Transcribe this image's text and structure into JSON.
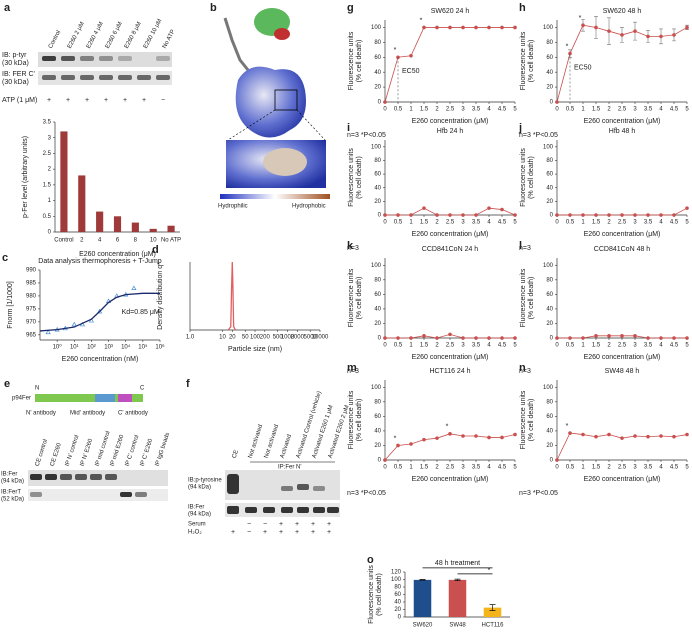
{
  "figure": {
    "a": {
      "label": "a",
      "lanes": [
        "Control",
        "E260 2 μM",
        "E260 4 μM",
        "E260 6 μM",
        "E260 8 μM",
        "E260 10 μM",
        "No ATP"
      ],
      "rows": [
        "IB: p-tyr",
        "(30 kDa)",
        "IB: FER C'",
        "(30 kDa)"
      ],
      "atp_label": "ATP (1 μM)",
      "atp_signs": [
        "+",
        "+",
        "+",
        "+",
        "+",
        "+",
        "−"
      ]
    },
    "b": {
      "label": "b",
      "left": "Hydrophilic",
      "right": "Hydrophobic"
    },
    "e": {
      "label": "e",
      "protein": "p94Fer",
      "n_term": "N",
      "c_term": "C",
      "antibodies": [
        "N' antibody",
        "Mid' antibody",
        "C' antibody"
      ],
      "lanes": [
        "CE control",
        "CE E260",
        "IP N' control",
        "IP N' E260",
        "IP mid control",
        "IP mid E260",
        "IP C' control",
        "IP C' E260",
        "IP IgG beads"
      ],
      "rows": [
        "IB:Fer",
        "(94 kDa)",
        "IB:FerT",
        "(52 kDa)"
      ]
    },
    "f": {
      "label": "f",
      "lanes": [
        "CE",
        "Not activated",
        "Not activated",
        "Activated",
        "Activated Control (vehicle)",
        "Activated E260 1 μM",
        "Activated E260 2 μM"
      ],
      "ip": "IP:Fer N'",
      "rows": [
        "IB:p-tyrosine",
        "(94 kDa)",
        "IB:Fer",
        "(94 kDa)"
      ],
      "serum": "Serum",
      "serum_signs": [
        "",
        "−",
        "−",
        "+",
        "+",
        "+",
        "+"
      ],
      "h2o2": "H₂O₂",
      "h2o2_signs": [
        "+",
        "−",
        "+",
        "+",
        "+",
        "+",
        "+"
      ]
    }
  },
  "chart_data": [
    {
      "type": "bar",
      "categories": [
        "Control",
        "2",
        "4",
        "6",
        "8",
        "10",
        "No ATP"
      ],
      "values": [
        3.2,
        1.8,
        0.65,
        0.5,
        0.3,
        0.1,
        0.2
      ],
      "color": "#9e3a3a",
      "ylim": [
        0,
        3.5
      ],
      "yticks": [
        0,
        0.5,
        1,
        1.5,
        2,
        2.5,
        3,
        3.5
      ],
      "ylabel": [
        "p-Fer level (arbitrary units)"
      ],
      "xlabel": "E260 concentration (μM)"
    },
    {
      "panel": "c",
      "type": "line",
      "title": "Data analysis thermophoresis + T-Jump",
      "xlog": true,
      "xlim": [
        0.1,
        1000000
      ],
      "xticks": [
        {
          "value": 1,
          "label": "10⁰"
        },
        {
          "value": 10,
          "label": "10¹"
        },
        {
          "value": 100,
          "label": "10²"
        },
        {
          "value": 1000,
          "label": "10³"
        },
        {
          "value": 10000,
          "label": "10⁴"
        },
        {
          "value": 100000,
          "label": "10⁵"
        },
        {
          "value": 1000000,
          "label": "10⁶"
        }
      ],
      "ylim": [
        963,
        990
      ],
      "yticks": [
        965,
        970,
        975,
        980,
        985,
        990
      ],
      "ylabel": [
        "Fnorm [1/1000]"
      ],
      "xlabel": "E260 concentration (nM)",
      "annotation": "Kd=0.85 μM",
      "series": [
        {
          "mode": "markers",
          "color": "#4a8fd0",
          "x": [
            0.3,
            1,
            3,
            10,
            30,
            100,
            300,
            1000,
            3000,
            10000,
            30000
          ],
          "values": [
            966,
            967,
            967.5,
            969,
            969,
            970.5,
            974,
            978,
            980,
            980.5,
            983
          ]
        },
        {
          "mode": "line",
          "color": "#1a2a6c",
          "x": [
            0.1,
            1,
            10,
            100,
            300,
            1000,
            3000,
            10000,
            100000,
            1000000
          ],
          "values": [
            966.5,
            967,
            968,
            971,
            974,
            977.5,
            979.5,
            980.5,
            981,
            981
          ]
        }
      ]
    },
    {
      "panel": "d",
      "type": "line",
      "xlog": true,
      "xlim": [
        1,
        10000
      ],
      "xticks": [
        {
          "value": 1,
          "label": "1.0"
        },
        10,
        20,
        50,
        100,
        200,
        500,
        1000,
        2000,
        5000,
        10000
      ],
      "ylim": [
        0,
        100
      ],
      "ylabel": [
        "Density distribution q*"
      ],
      "xlabel": "Particle size (nm)",
      "series": [
        {
          "mode": "line",
          "color": "#e06060",
          "x": [
            15,
            18,
            19,
            20,
            21,
            22,
            25
          ],
          "values": [
            0,
            5,
            60,
            100,
            60,
            5,
            0
          ]
        }
      ]
    },
    {
      "panel": "g",
      "type": "line",
      "title": "SW620 24 h",
      "x": [
        0,
        0.5,
        1,
        1.5,
        2,
        2.5,
        3,
        3.5,
        4,
        4.5,
        5
      ],
      "xlim": [
        0,
        5
      ],
      "xticks": [
        0,
        0.5,
        1,
        1.5,
        2,
        2.5,
        3,
        3.5,
        4,
        4.5,
        5
      ],
      "ylim": [
        0,
        110
      ],
      "yticks": [
        0,
        20,
        40,
        60,
        80,
        100
      ],
      "ylabel": [
        "Fluorescence units",
        "(% cell death)"
      ],
      "xlabel": "E260 concentration (μM)",
      "note": "n=3 *P<0.05",
      "annotation": "EC50",
      "significance_label": "*",
      "significant_x": [
        0.5,
        1.5
      ],
      "series": [
        {
          "mode": "both",
          "color": "#c9504f",
          "values": [
            0,
            60,
            62,
            100,
            100,
            100,
            100,
            100,
            100,
            100,
            100
          ]
        }
      ]
    },
    {
      "panel": "h",
      "type": "line",
      "title": "SW620 48 h",
      "x": [
        0,
        0.5,
        1,
        1.5,
        2,
        2.5,
        3,
        3.5,
        4,
        4.5,
        5
      ],
      "xlim": [
        0,
        5
      ],
      "xticks": [
        0,
        0.5,
        1,
        1.5,
        2,
        2.5,
        3,
        3.5,
        4,
        4.5,
        5
      ],
      "ylim": [
        0,
        110
      ],
      "yticks": [
        0,
        20,
        40,
        60,
        80,
        100
      ],
      "ylabel": [
        "Fluorescence units",
        "(% cell death)"
      ],
      "xlabel": "E260 concentration (μM)",
      "note": "n=3 *P<0.05",
      "annotation": "EC50",
      "significance_label": "*",
      "significant_x": [
        0.5,
        1
      ],
      "series": [
        {
          "mode": "both",
          "color": "#c9504f",
          "values": [
            0,
            65,
            103,
            100,
            95,
            90,
            95,
            88,
            88,
            90,
            100
          ],
          "errors": [
            0,
            5,
            8,
            15,
            18,
            10,
            12,
            8,
            10,
            8,
            3
          ]
        }
      ]
    },
    {
      "panel": "i",
      "type": "line",
      "title": "Hfb 24 h",
      "x": [
        0,
        0.5,
        1,
        1.5,
        2,
        2.5,
        3,
        3.5,
        4,
        4.5,
        5
      ],
      "xlim": [
        0,
        5
      ],
      "xticks": [
        0,
        0.5,
        1,
        1.5,
        2,
        2.5,
        3,
        3.5,
        4,
        4.5,
        5
      ],
      "ylim": [
        0,
        110
      ],
      "yticks": [
        0,
        20,
        40,
        60,
        80,
        100
      ],
      "ylabel": [
        "Fluorescence units",
        "(% cell death)"
      ],
      "xlabel": "E260 concentration (μM)",
      "note": "n=3",
      "series": [
        {
          "mode": "both",
          "color": "#c9504f",
          "values": [
            0,
            0,
            0,
            10,
            0,
            0,
            0,
            0,
            10,
            8,
            0
          ]
        }
      ]
    },
    {
      "panel": "j",
      "type": "line",
      "title": "Hfb 48 h",
      "x": [
        0,
        0.5,
        1,
        1.5,
        2,
        2.5,
        3,
        3.5,
        4,
        4.5,
        5
      ],
      "xlim": [
        0,
        5
      ],
      "xticks": [
        0,
        0.5,
        1,
        1.5,
        2,
        2.5,
        3,
        3.5,
        4,
        4.5,
        5
      ],
      "ylim": [
        0,
        110
      ],
      "yticks": [
        0,
        20,
        40,
        60,
        80,
        100
      ],
      "ylabel": [
        "Fluorescence units",
        "(% cell death)"
      ],
      "xlabel": "E260 concentration (μM)",
      "note": "n=3",
      "series": [
        {
          "mode": "both",
          "color": "#c9504f",
          "values": [
            0,
            0,
            0,
            0,
            0,
            0,
            0,
            0,
            0,
            0,
            10
          ]
        }
      ]
    },
    {
      "panel": "k",
      "type": "line",
      "title": "CCD841CoN 24 h",
      "x": [
        0,
        0.5,
        1,
        1.5,
        2,
        2.5,
        3,
        3.5,
        4,
        4.5,
        5
      ],
      "xlim": [
        0,
        5
      ],
      "xticks": [
        0,
        0.5,
        1,
        1.5,
        2,
        2.5,
        3,
        3.5,
        4,
        4.5,
        5
      ],
      "ylim": [
        0,
        110
      ],
      "yticks": [
        0,
        20,
        40,
        60,
        80,
        100
      ],
      "ylabel": [
        "Fluorescence units",
        "(% cell death)"
      ],
      "xlabel": "E260 concentration (μM)",
      "note": "n=3",
      "series": [
        {
          "mode": "both",
          "color": "#c9504f",
          "values": [
            0,
            0,
            0,
            3,
            0,
            5,
            0,
            0,
            0,
            0,
            0
          ]
        }
      ]
    },
    {
      "panel": "l",
      "type": "line",
      "title": "CCD841CoN 48 h",
      "x": [
        0,
        0.5,
        1,
        1.5,
        2,
        2.5,
        3,
        3.5,
        4,
        4.5,
        5
      ],
      "xlim": [
        0,
        5
      ],
      "xticks": [
        0,
        0.5,
        1,
        1.5,
        2,
        2.5,
        3,
        3.5,
        4,
        4.5,
        5
      ],
      "ylim": [
        0,
        110
      ],
      "yticks": [
        0,
        20,
        40,
        60,
        80,
        100
      ],
      "ylabel": [
        "Fluorescence units",
        "(% cell death)"
      ],
      "xlabel": "E260 concentration (μM)",
      "note": "n=3",
      "series": [
        {
          "mode": "both",
          "color": "#c9504f",
          "values": [
            0,
            0,
            0,
            3,
            3,
            3,
            3,
            0,
            0,
            0,
            0
          ]
        }
      ]
    },
    {
      "panel": "m",
      "type": "line",
      "title": "HCT116 24 h",
      "x": [
        0,
        0.5,
        1,
        1.5,
        2,
        2.5,
        3,
        3.5,
        4,
        4.5,
        5
      ],
      "xlim": [
        0,
        5
      ],
      "xticks": [
        0,
        0.5,
        1,
        1.5,
        2,
        2.5,
        3,
        3.5,
        4,
        4.5,
        5
      ],
      "ylim": [
        0,
        110
      ],
      "yticks": [
        0,
        20,
        40,
        60,
        80,
        100
      ],
      "ylabel": [
        "Fluorescence units",
        "(% cell death)"
      ],
      "xlabel": "E260 concentration (μM)",
      "note": "n=3 *P<0.05",
      "significance_label": "*",
      "significant_x": [
        0.5,
        2.5
      ],
      "series": [
        {
          "mode": "both",
          "color": "#c9504f",
          "values": [
            0,
            20,
            22,
            28,
            30,
            36,
            33,
            33,
            31,
            31,
            35
          ]
        }
      ]
    },
    {
      "panel": "n",
      "type": "line",
      "title": "SW48 48 h",
      "x": [
        0,
        0.5,
        1,
        1.5,
        2,
        2.5,
        3,
        3.5,
        4,
        4.5,
        5
      ],
      "xlim": [
        0,
        5
      ],
      "xticks": [
        0,
        0.5,
        1,
        1.5,
        2,
        2.5,
        3,
        3.5,
        4,
        4.5,
        5
      ],
      "ylim": [
        0,
        110
      ],
      "yticks": [
        0,
        20,
        40,
        60,
        80,
        100
      ],
      "ylabel": [
        "Fluorescence units",
        "(% cell death)"
      ],
      "xlabel": "E260 concentration (μM)",
      "note": "n=3 *P<0.05",
      "significance_label": "*",
      "significant_x": [
        0.5
      ],
      "series": [
        {
          "mode": "both",
          "color": "#c9504f",
          "values": [
            0,
            37,
            35,
            32,
            35,
            30,
            33,
            32,
            33,
            32,
            35
          ]
        }
      ]
    },
    {
      "panel": "o",
      "type": "bar",
      "title": "48 h treatment",
      "categories": [
        "SW620",
        "SW48",
        "HCT116"
      ],
      "values": [
        99,
        99,
        25
      ],
      "errors": [
        1,
        2,
        8
      ],
      "colors": [
        "#1f4e8c",
        "#c9504f",
        "#f4b41a"
      ],
      "ylim": [
        0,
        120
      ],
      "yticks": [
        0,
        20,
        40,
        60,
        80,
        100,
        120
      ],
      "ylabel": [
        "Fluorescence units",
        "(% cell death)"
      ],
      "note": "n=3 *P<0.05",
      "significance_label": "*"
    }
  ]
}
